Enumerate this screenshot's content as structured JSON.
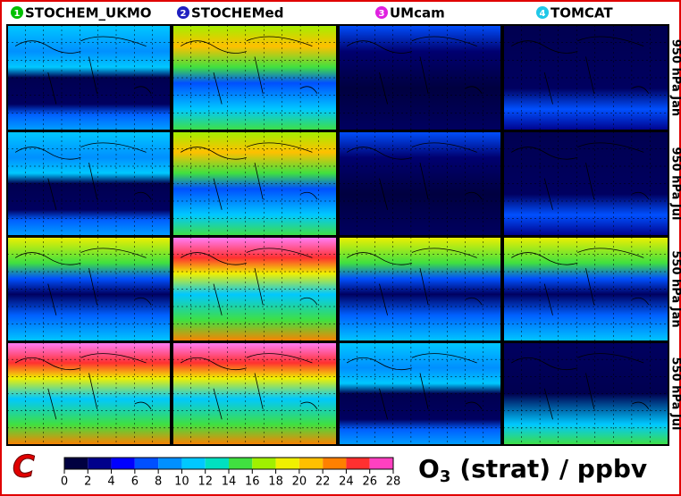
{
  "columns": [
    "STOCHEM_UKMO",
    "STOCHEMed",
    "UMcam",
    "TOMCAT"
  ],
  "column_numbers": [
    "1",
    "2",
    "3",
    "4"
  ],
  "rows": [
    "950 hPa Jan",
    "950 hPa Jul",
    "550 hPa Jan",
    "550 hPa Jul"
  ],
  "panel_letter": "C",
  "colorbar": {
    "title": {
      "main": "O",
      "subscript": "3",
      "rest": "(strat) / ppbv"
    },
    "lim": [
      0,
      28
    ],
    "ticks": [
      0,
      2,
      4,
      6,
      8,
      10,
      12,
      14,
      16,
      18,
      20,
      22,
      24,
      26,
      28
    ],
    "colors": [
      "#000040",
      "#00008b",
      "#0000ff",
      "#0050ff",
      "#0090ff",
      "#00c8ff",
      "#00e0c0",
      "#40e040",
      "#a0f000",
      "#f0f000",
      "#ffc000",
      "#ff8000",
      "#ff3030",
      "#ff40c0"
    ]
  }
}
